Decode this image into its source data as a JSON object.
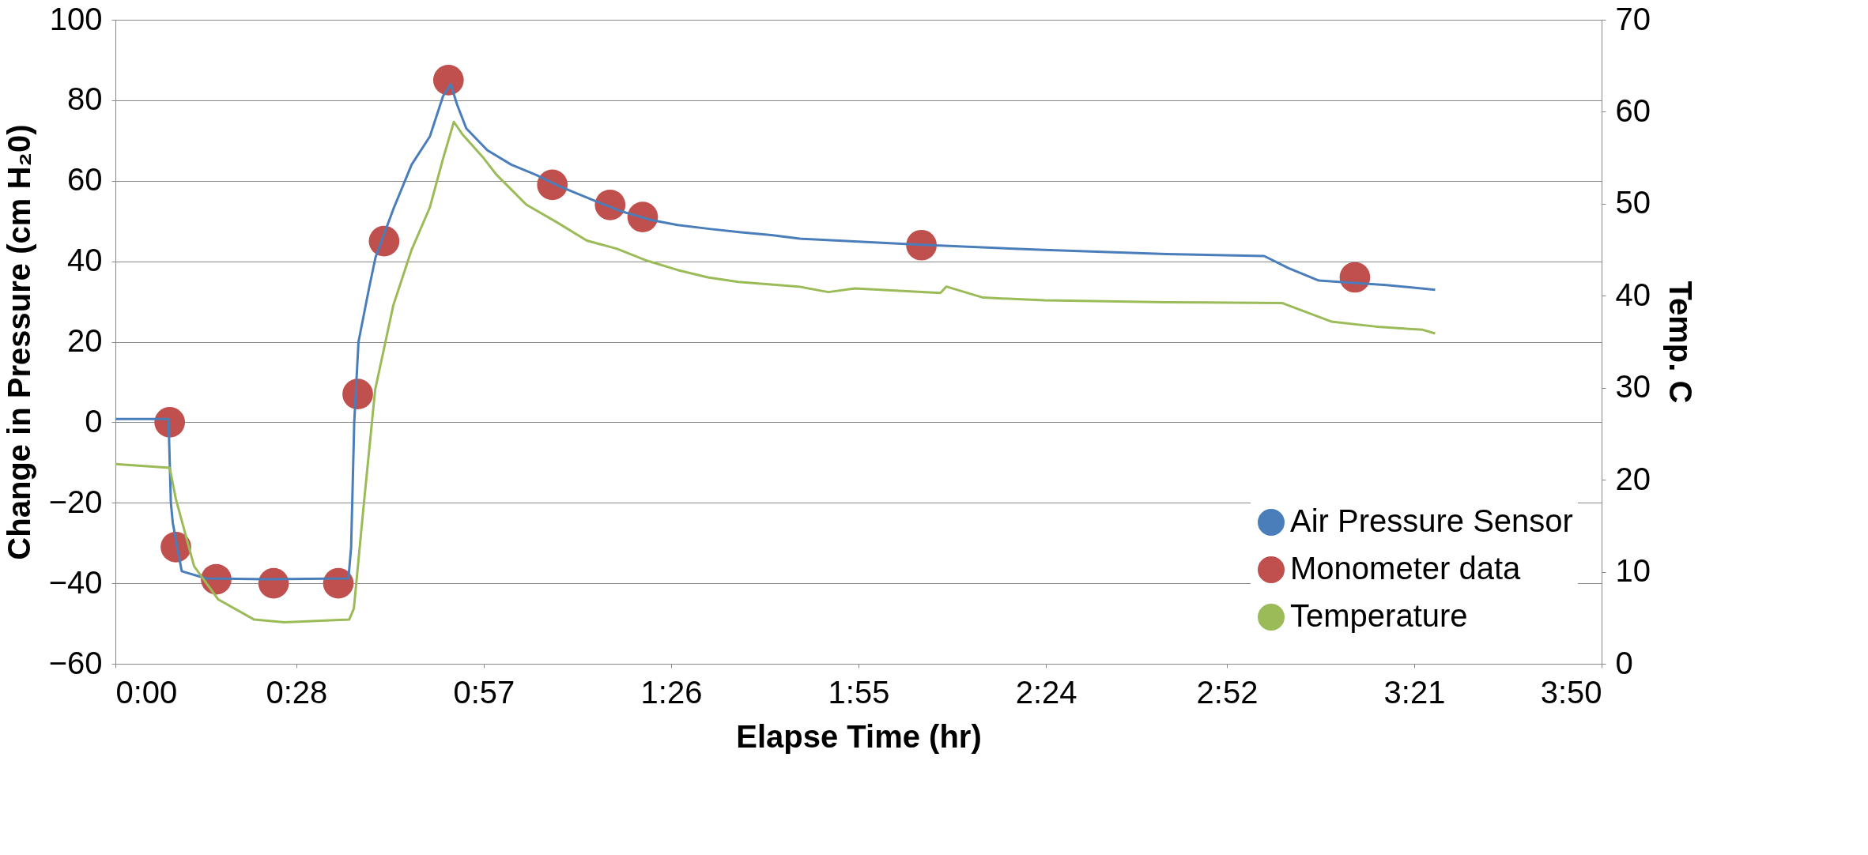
{
  "chart_data": {
    "type": "line",
    "xlabel": "Elapse Time (hr)",
    "ylabel": "Change in Pressure (cm H₂0)",
    "y2label": "Temp. C",
    "xlim": [
      0,
      3.8333
    ],
    "xticks": [
      {
        "value": 0,
        "label": "0:00"
      },
      {
        "value": 0.4667,
        "label": "0:28"
      },
      {
        "value": 0.95,
        "label": "0:57"
      },
      {
        "value": 1.4333,
        "label": "1:26"
      },
      {
        "value": 1.9167,
        "label": "1:55"
      },
      {
        "value": 2.4,
        "label": "2:24"
      },
      {
        "value": 2.8667,
        "label": "2:52"
      },
      {
        "value": 3.35,
        "label": "3:21"
      },
      {
        "value": 3.8333,
        "label": "3:50"
      }
    ],
    "ylim": [
      -60,
      100
    ],
    "yticks": [
      -60,
      -40,
      -20,
      0,
      20,
      40,
      60,
      80,
      100
    ],
    "y2lim": [
      0,
      70
    ],
    "y2ticks": [
      0,
      10,
      20,
      30,
      40,
      50,
      60,
      70
    ],
    "grid": "y",
    "legend": "bottom right",
    "series": [
      {
        "name": "Air Pressure Sensor",
        "marker": "none",
        "color": "#4a7ebb",
        "x": [
          0,
          0.137,
          0.143,
          0.148,
          0.171,
          0.234,
          0.39,
          0.601,
          0.608,
          0.616,
          0.627,
          0.655,
          0.671,
          0.717,
          0.764,
          0.811,
          0.845,
          0.865,
          0.881,
          0.905,
          0.959,
          1.021,
          1.084,
          1.146,
          1.224,
          1.302,
          1.38,
          1.45,
          1.536,
          1.614,
          1.692,
          1.765,
          2.079,
          2.396,
          2.711,
          2.963,
          3.026,
          3.104,
          3.278,
          3.404
        ],
        "values": [
          0.8,
          0.8,
          -20,
          -25,
          -37,
          -38.8,
          -39,
          -38.8,
          -31,
          0,
          20,
          33.7,
          41,
          53,
          64,
          71,
          81,
          84,
          79,
          73,
          67.6,
          64,
          61.5,
          58.6,
          55.5,
          52.5,
          50.3,
          49,
          48,
          47.2,
          46.5,
          45.6,
          44.1,
          42.8,
          41.8,
          41.3,
          38.3,
          35.2,
          34.1,
          32.9
        ]
      },
      {
        "name": "Monometer data",
        "type": "scatter",
        "marker": "circle",
        "color": "#c0504d",
        "x": [
          0.14,
          0.156,
          0.26,
          0.408,
          0.575,
          0.625,
          0.693,
          0.859,
          1.127,
          1.276,
          1.36,
          2.079,
          3.197
        ],
        "values": [
          0,
          -31,
          -39,
          -40,
          -40,
          7,
          45,
          85,
          59,
          54,
          51,
          44,
          36
        ]
      },
      {
        "name": "Temperature",
        "marker": "none",
        "axis": "y2",
        "color": "#9bbb59",
        "x": [
          0,
          0.14,
          0.156,
          0.203,
          0.265,
          0.358,
          0.436,
          0.603,
          0.615,
          0.639,
          0.67,
          0.717,
          0.764,
          0.811,
          0.845,
          0.873,
          0.896,
          0.951,
          0.982,
          1.06,
          1.138,
          1.216,
          1.294,
          1.372,
          1.45,
          1.528,
          1.606,
          1.762,
          1.839,
          1.907,
          2.128,
          2.143,
          2.238,
          2.396,
          2.711,
          3.01,
          3.136,
          3.262,
          3.372,
          3.404
        ],
        "values": [
          21.7,
          21.3,
          17.9,
          10.6,
          7.0,
          4.8,
          4.5,
          4.8,
          6.0,
          16.6,
          29.8,
          39,
          45,
          49.6,
          54.9,
          58.9,
          57.5,
          54.9,
          53.2,
          49.9,
          48,
          46,
          45.1,
          43.8,
          42.8,
          42,
          41.5,
          41,
          40.4,
          40.8,
          40.3,
          41.0,
          39.8,
          39.5,
          39.3,
          39.2,
          37.2,
          36.6,
          36.3,
          35.9
        ]
      }
    ]
  }
}
